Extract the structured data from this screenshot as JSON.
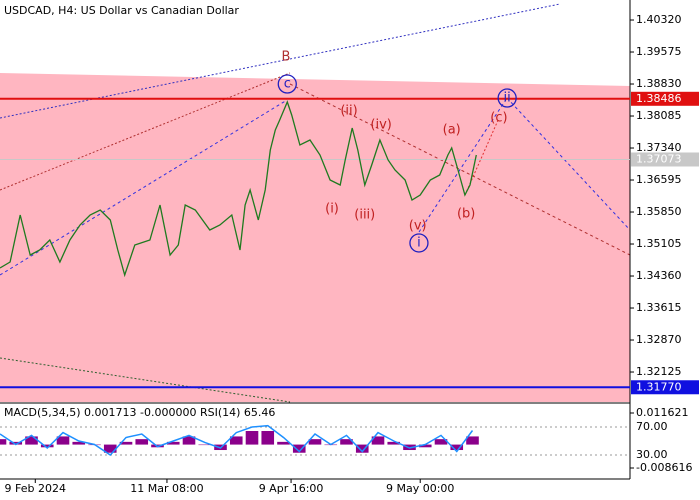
{
  "chart_data": {
    "type": "line",
    "title": "USDCAD, H4:  US Dollar vs Canadian Dollar",
    "color": "#1f7a1f",
    "x": [
      0,
      1.6,
      3.2,
      4.8,
      6.3,
      7.9,
      9.5,
      11.1,
      12.7,
      14.3,
      15.9,
      17.5,
      18.7,
      19.8,
      21.4,
      23.8,
      25.4,
      27.0,
      28.3,
      29.4,
      31.0,
      33.3,
      34.9,
      36.8,
      38.1,
      38.9,
      39.7,
      41.0,
      42.1,
      42.9,
      43.7,
      44.4,
      45.6,
      46.3,
      47.6,
      49.2,
      50.8,
      52.4,
      54.0,
      54.8,
      55.9,
      56.8,
      57.9,
      59.0,
      60.3,
      61.6,
      62.7,
      64.3,
      65.4,
      66.7,
      68.3,
      69.8,
      71.1,
      71.7,
      72.7,
      73.8,
      74.6,
      75.6
    ],
    "values": [
      1.34547,
      1.34686,
      1.35781,
      1.34849,
      1.34966,
      1.35199,
      1.34686,
      1.35199,
      1.35548,
      1.35781,
      1.35897,
      1.35664,
      1.34966,
      1.34384,
      1.35082,
      1.35199,
      1.36013,
      1.34849,
      1.35082,
      1.36013,
      1.35897,
      1.35431,
      1.35548,
      1.35781,
      1.34966,
      1.36013,
      1.36363,
      1.35664,
      1.36363,
      1.37294,
      1.37759,
      1.37992,
      1.38411,
      1.38109,
      1.3741,
      1.37527,
      1.37177,
      1.36595,
      1.36479,
      1.37061,
      1.37806,
      1.37294,
      1.36479,
      1.36945,
      1.37527,
      1.37061,
      1.36828,
      1.36595,
      1.3613,
      1.36246,
      1.36595,
      1.36712,
      1.37177,
      1.3734,
      1.36828,
      1.36246,
      1.36479,
      1.37177
    ],
    "xlim": [
      0,
      100
    ],
    "xticks": [
      {
        "value": 5.6,
        "label": "9 Feb 2024"
      },
      {
        "value": 26.5,
        "label": "11 Mar 08:00"
      },
      {
        "value": 46.2,
        "label": "9 Apr 16:00"
      },
      {
        "value": 66.7,
        "label": "9 May 00:00"
      }
    ],
    "ylim": [
      1.31427,
      1.40786
    ],
    "yticks": [
      {
        "value": 1.4032,
        "label": "1.40320"
      },
      1.39575,
      {
        "value": 1.3883,
        "label": "1.38830"
      },
      1.38085,
      {
        "value": 1.3734,
        "label": "1.37340"
      },
      1.36595,
      {
        "value": 1.3585,
        "label": "1.35850"
      },
      1.35105,
      {
        "value": 1.3436,
        "label": "1.34360"
      },
      1.33615,
      {
        "value": 1.3287,
        "label": "1.32870"
      },
      1.32125
    ],
    "price_levels": [
      {
        "value": 1.38486,
        "color": "#e01010"
      },
      {
        "value": 1.37073,
        "color": "#c8c8c8"
      },
      {
        "value": 1.3177,
        "label": "1.31770",
        "color": "#1010e0"
      }
    ],
    "annotations": [
      {
        "text": "B",
        "x": 45.4,
        "y": 1.39459,
        "color": "#b03030"
      },
      {
        "text": "c",
        "x": 45.6,
        "y": 1.3883,
        "color": "#2020c0",
        "circled": true
      },
      {
        "text": "(ii)",
        "x": 55.4,
        "y": 1.38202,
        "color": "#c02020"
      },
      {
        "text": "(iv)",
        "x": 60.5,
        "y": 1.37876,
        "color": "#c02020"
      },
      {
        "text": "(i)",
        "x": 52.7,
        "y": 1.3592,
        "color": "#c02020"
      },
      {
        "text": "(iii)",
        "x": 57.9,
        "y": 1.35781,
        "color": "#c02020"
      },
      {
        "text": "(v)",
        "x": 66.3,
        "y": 1.35525,
        "color": "#c02020"
      },
      {
        "text": "i",
        "x": 66.5,
        "y": 1.35129,
        "color": "#2020c0",
        "circled": true
      },
      {
        "text": "(a)",
        "x": 71.7,
        "y": 1.37759,
        "color": "#c02020"
      },
      {
        "text": "(b)",
        "x": 74.0,
        "y": 1.35804,
        "color": "#c02020"
      },
      {
        "text": "(c)",
        "x": 79.2,
        "y": 1.38039,
        "color": "#c02020"
      },
      {
        "text": "ii",
        "x": 80.5,
        "y": 1.38504,
        "color": "#2020c0",
        "circled": true
      }
    ],
    "indicator": {
      "label": "MACD(5,34,5) 0.001713 -0.000000 RSI(14) 65.46",
      "x": [
        0,
        2.5,
        5,
        7.5,
        10,
        12.5,
        15,
        17.5,
        20,
        22.5,
        25,
        27.5,
        30,
        32.5,
        35,
        37.5,
        40,
        42.5,
        45,
        47.5,
        50,
        52.5,
        55,
        57.5,
        60,
        62.5,
        65,
        67.5,
        70,
        72.5,
        75
      ],
      "histogram": [
        0.002,
        0.001,
        0.003,
        -0.001,
        0.003,
        0.001,
        0.0,
        -0.003,
        0.001,
        0.002,
        -0.001,
        0.001,
        0.003,
        0.0,
        -0.002,
        0.003,
        0.005,
        0.005,
        0.001,
        -0.003,
        0.002,
        0.0,
        0.002,
        -0.003,
        0.003,
        0.001,
        -0.002,
        -0.001,
        0.002,
        -0.002,
        0.003
      ],
      "histogram_color": "#8b008b",
      "rsi": [
        60,
        45,
        58,
        40,
        62,
        50,
        45,
        30,
        55,
        60,
        42,
        50,
        58,
        48,
        40,
        62,
        70,
        72,
        55,
        35,
        60,
        45,
        58,
        35,
        62,
        50,
        40,
        45,
        58,
        35,
        65
      ],
      "rsi_color": "#1e90ff",
      "ylim": [
        -0.012295,
        0.014932
      ],
      "yticks": [
        0.011621,
        -0.008616
      ],
      "y2lim": [
        -2.9,
        102.9
      ],
      "y2ticks": [
        {
          "value": 70,
          "label": "70.00"
        },
        {
          "value": 30,
          "label": "30.00"
        }
      ]
    }
  }
}
